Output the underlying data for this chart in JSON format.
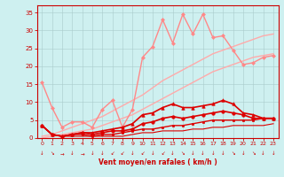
{
  "xlabel": "Vent moyen/en rafales ( km/h )",
  "background_color": "#cef0f0",
  "x": [
    0,
    1,
    2,
    3,
    4,
    5,
    6,
    7,
    8,
    9,
    10,
    11,
    12,
    13,
    14,
    15,
    16,
    17,
    18,
    19,
    20,
    21,
    22,
    23
  ],
  "series": [
    {
      "comment": "upper straight pink line (top bound)",
      "color": "#ffaaaa",
      "linewidth": 1.0,
      "marker": null,
      "y": [
        0.5,
        1.0,
        2.0,
        3.0,
        4.0,
        5.0,
        6.0,
        7.5,
        9.0,
        10.5,
        12.0,
        14.0,
        16.0,
        17.5,
        19.0,
        20.5,
        22.0,
        23.5,
        24.5,
        25.5,
        26.5,
        27.5,
        28.5,
        29.0
      ]
    },
    {
      "comment": "lower straight pink line (lower bound)",
      "color": "#ffaaaa",
      "linewidth": 1.0,
      "marker": null,
      "y": [
        0.0,
        0.5,
        1.0,
        1.5,
        2.0,
        2.5,
        3.5,
        4.5,
        5.5,
        6.5,
        8.0,
        9.5,
        11.0,
        12.5,
        14.0,
        15.5,
        17.0,
        18.5,
        19.5,
        20.5,
        21.5,
        22.5,
        23.0,
        23.5
      ]
    },
    {
      "comment": "jagged pink line with markers - actual gust data",
      "color": "#ff8888",
      "linewidth": 1.0,
      "marker": "D",
      "markersize": 2,
      "y": [
        15.5,
        8.5,
        3.0,
        4.5,
        4.5,
        3.0,
        8.0,
        10.5,
        3.0,
        8.0,
        22.5,
        25.5,
        33.0,
        26.5,
        34.5,
        29.0,
        34.5,
        28.0,
        28.5,
        24.5,
        20.5,
        21.0,
        22.5,
        23.0
      ]
    },
    {
      "comment": "red line with triangle markers - max wind",
      "color": "#dd0000",
      "linewidth": 1.2,
      "marker": "^",
      "markersize": 2.5,
      "y": [
        3.5,
        1.0,
        0.5,
        1.0,
        1.5,
        1.5,
        2.0,
        2.5,
        3.0,
        4.0,
        6.5,
        7.0,
        8.5,
        9.5,
        8.5,
        8.5,
        9.0,
        9.5,
        10.5,
        9.5,
        7.0,
        6.5,
        5.5,
        5.5
      ]
    },
    {
      "comment": "red line with circle markers",
      "color": "#dd0000",
      "linewidth": 1.2,
      "marker": "o",
      "markersize": 2.5,
      "y": [
        3.5,
        1.0,
        0.5,
        1.0,
        1.5,
        1.0,
        1.5,
        2.0,
        2.0,
        2.5,
        4.0,
        4.5,
        5.5,
        6.0,
        5.5,
        6.0,
        6.5,
        7.0,
        7.5,
        7.0,
        6.5,
        5.5,
        5.5,
        5.5
      ]
    },
    {
      "comment": "red line with square markers",
      "color": "#dd0000",
      "linewidth": 1.0,
      "marker": "s",
      "markersize": 2,
      "y": [
        3.5,
        1.0,
        0.5,
        1.0,
        1.0,
        0.5,
        1.0,
        1.0,
        1.5,
        2.0,
        2.5,
        2.5,
        3.0,
        3.5,
        3.5,
        4.0,
        4.5,
        5.0,
        5.0,
        5.0,
        5.0,
        5.0,
        5.5,
        5.5
      ]
    },
    {
      "comment": "bottom red line no markers",
      "color": "#dd0000",
      "linewidth": 0.8,
      "marker": null,
      "y": [
        3.5,
        1.0,
        0.5,
        0.5,
        0.5,
        0.5,
        0.5,
        0.5,
        0.5,
        1.0,
        1.5,
        1.5,
        2.0,
        2.0,
        2.0,
        2.5,
        2.5,
        3.0,
        3.0,
        3.5,
        3.5,
        3.5,
        3.5,
        4.0
      ]
    }
  ],
  "ylim": [
    0,
    37
  ],
  "xlim": [
    -0.5,
    23.5
  ],
  "yticks": [
    0,
    5,
    10,
    15,
    20,
    25,
    30,
    35
  ],
  "xticks": [
    0,
    1,
    2,
    3,
    4,
    5,
    6,
    7,
    8,
    9,
    10,
    11,
    12,
    13,
    14,
    15,
    16,
    17,
    18,
    19,
    20,
    21,
    22,
    23
  ],
  "xtick_labels": [
    "0",
    "1",
    "2",
    "3",
    "4",
    "5",
    "6",
    "7",
    "8",
    "9",
    "10",
    "11",
    "12",
    "13",
    "14",
    "15",
    "16",
    "17",
    "18",
    "19",
    "20",
    "21",
    "22",
    "23"
  ],
  "tick_color": "#cc0000",
  "label_color": "#cc0000",
  "axis_color": "#cc0000",
  "grid_color": "#aacccc",
  "wind_arrows": [
    "↓",
    "↘",
    "→",
    "↓",
    "→",
    "↓",
    "↓",
    "↙",
    "↙",
    "↓",
    "↙",
    "↓",
    "↙",
    "↓",
    "↘",
    "↓",
    "↓",
    "↓",
    "↓",
    "↘",
    "↓",
    "↘",
    "↓",
    "↓"
  ]
}
